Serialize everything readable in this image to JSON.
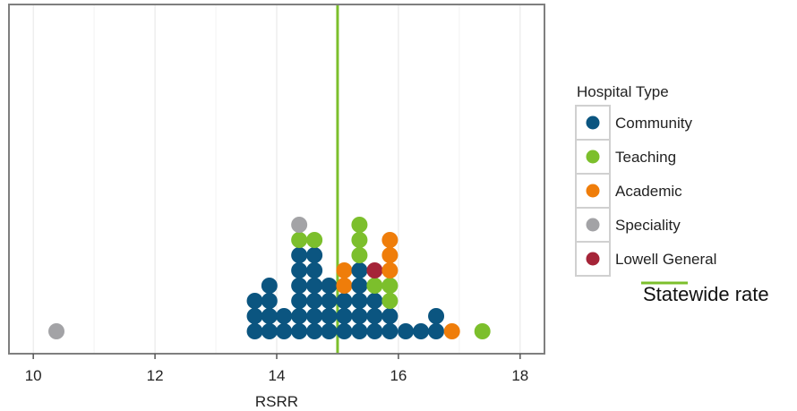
{
  "chart_data": {
    "type": "scatter",
    "subtype": "dotplot",
    "title": "",
    "xlabel": "RSRR",
    "ylabel": "",
    "xlim": [
      9.6,
      18.4
    ],
    "xticks": [
      10,
      12,
      14,
      16,
      18
    ],
    "xtick_labels": [
      "10",
      "12",
      "14",
      "16",
      "18"
    ],
    "grid": true,
    "legend_placement": "right",
    "legend_title": "Hospital Type",
    "series": [
      {
        "name": "Community",
        "color": "#0b5580"
      },
      {
        "name": "Teaching",
        "color": "#7cbf2c"
      },
      {
        "name": "Academic",
        "color": "#ef7d0a"
      },
      {
        "name": "Speciality",
        "color": "#a3a3a6"
      },
      {
        "name": "Lowell General",
        "color": "#a52438"
      }
    ],
    "reference_line": {
      "label": "Statewide rate",
      "x": 15.0,
      "color": "#7cbf2c"
    },
    "stacks": [
      {
        "x": 10.38,
        "dots": [
          "Speciality"
        ]
      },
      {
        "x": 13.64,
        "dots": [
          "Community",
          "Community",
          "Community"
        ]
      },
      {
        "x": 13.88,
        "dots": [
          "Community",
          "Community",
          "Community",
          "Community"
        ]
      },
      {
        "x": 14.12,
        "dots": [
          "Community",
          "Community"
        ]
      },
      {
        "x": 14.37,
        "dots": [
          "Community",
          "Community",
          "Community",
          "Community",
          "Community",
          "Community",
          "Teaching",
          "Speciality"
        ]
      },
      {
        "x": 14.62,
        "dots": [
          "Community",
          "Community",
          "Community",
          "Community",
          "Community",
          "Community",
          "Teaching"
        ]
      },
      {
        "x": 14.86,
        "dots": [
          "Community",
          "Community",
          "Community",
          "Community"
        ]
      },
      {
        "x": 15.11,
        "dots": [
          "Community",
          "Community",
          "Community",
          "Academic",
          "Academic"
        ]
      },
      {
        "x": 15.36,
        "dots": [
          "Community",
          "Community",
          "Community",
          "Community",
          "Community",
          "Teaching",
          "Teaching",
          "Teaching"
        ]
      },
      {
        "x": 15.61,
        "dots": [
          "Community",
          "Community",
          "Community",
          "Teaching",
          "Lowell General"
        ]
      },
      {
        "x": 15.86,
        "dots": [
          "Community",
          "Community",
          "Teaching",
          "Teaching",
          "Academic",
          "Academic",
          "Academic"
        ]
      },
      {
        "x": 16.12,
        "dots": [
          "Community"
        ]
      },
      {
        "x": 16.37,
        "dots": [
          "Community"
        ]
      },
      {
        "x": 16.62,
        "dots": [
          "Community",
          "Community"
        ]
      },
      {
        "x": 16.88,
        "dots": [
          "Academic"
        ]
      },
      {
        "x": 17.38,
        "dots": [
          "Teaching"
        ]
      }
    ]
  }
}
